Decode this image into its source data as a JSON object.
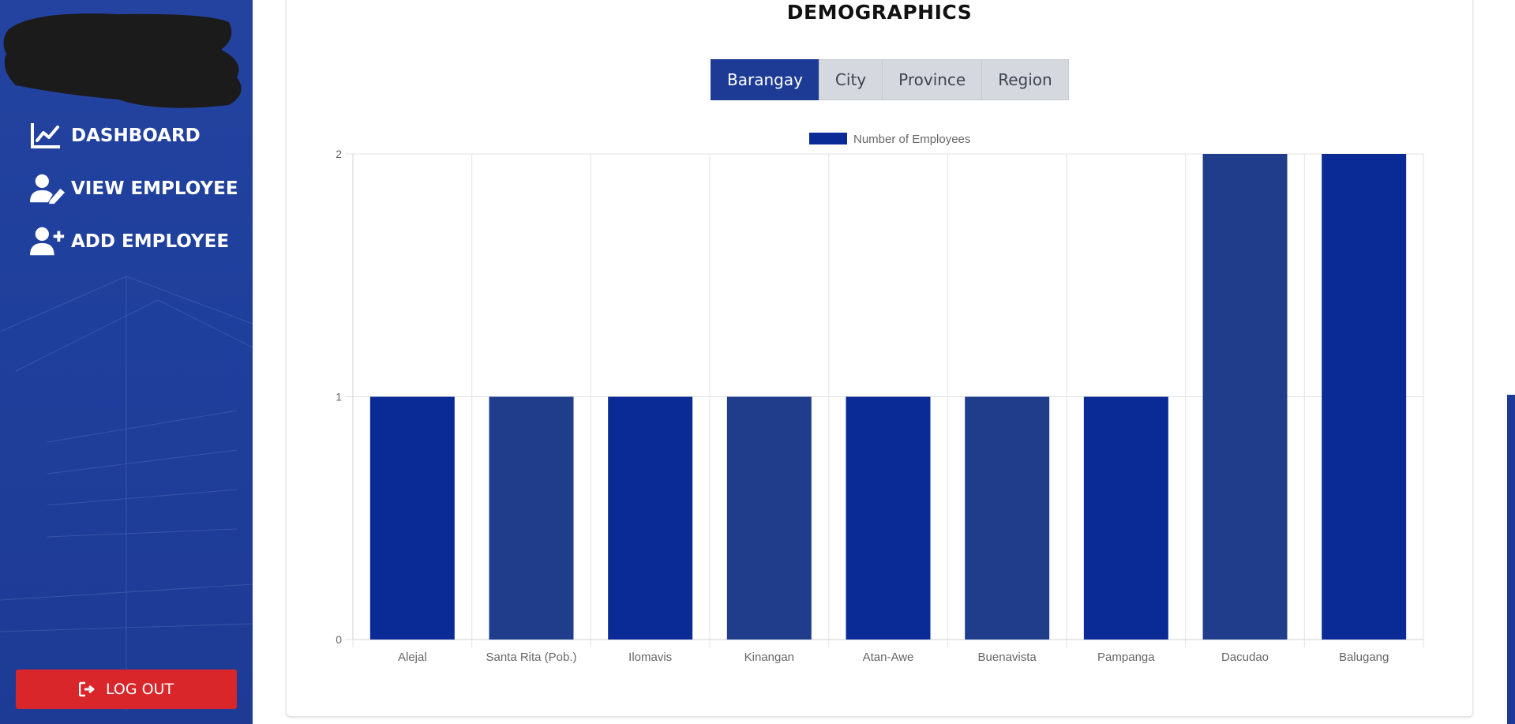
{
  "sidebar": {
    "items": [
      {
        "label": "DASHBOARD",
        "icon": "chart-line-icon"
      },
      {
        "label": "VIEW EMPLOYEE",
        "icon": "user-edit-icon"
      },
      {
        "label": "ADD EMPLOYEE",
        "icon": "user-plus-icon"
      }
    ],
    "logout_label": "LOG OUT",
    "logout_icon": "sign-out-icon",
    "colors": {
      "background": "#1f3f9c",
      "logout": "#d8262a"
    }
  },
  "main": {
    "title": "DEMOGRAPHICS",
    "tabs": [
      {
        "label": "Barangay",
        "active": true
      },
      {
        "label": "City",
        "active": false
      },
      {
        "label": "Province",
        "active": false
      },
      {
        "label": "Region",
        "active": false
      }
    ]
  },
  "chart_data": {
    "type": "bar",
    "categories": [
      "Alejal",
      "Santa Rita (Pob.)",
      "Ilomavis",
      "Kinangan",
      "Atan-Awe",
      "Buenavista",
      "Pampanga",
      "Dacudao",
      "Balugang"
    ],
    "series": [
      {
        "name": "Number of Employees",
        "values": [
          1,
          1,
          1,
          1,
          1,
          1,
          1,
          2,
          2
        ]
      }
    ],
    "ylim": [
      0,
      2
    ],
    "yticks": [
      0,
      1,
      2
    ],
    "legend": "top-center",
    "grid": true,
    "colors": [
      "#0a2b95",
      "#203d8c"
    ]
  }
}
